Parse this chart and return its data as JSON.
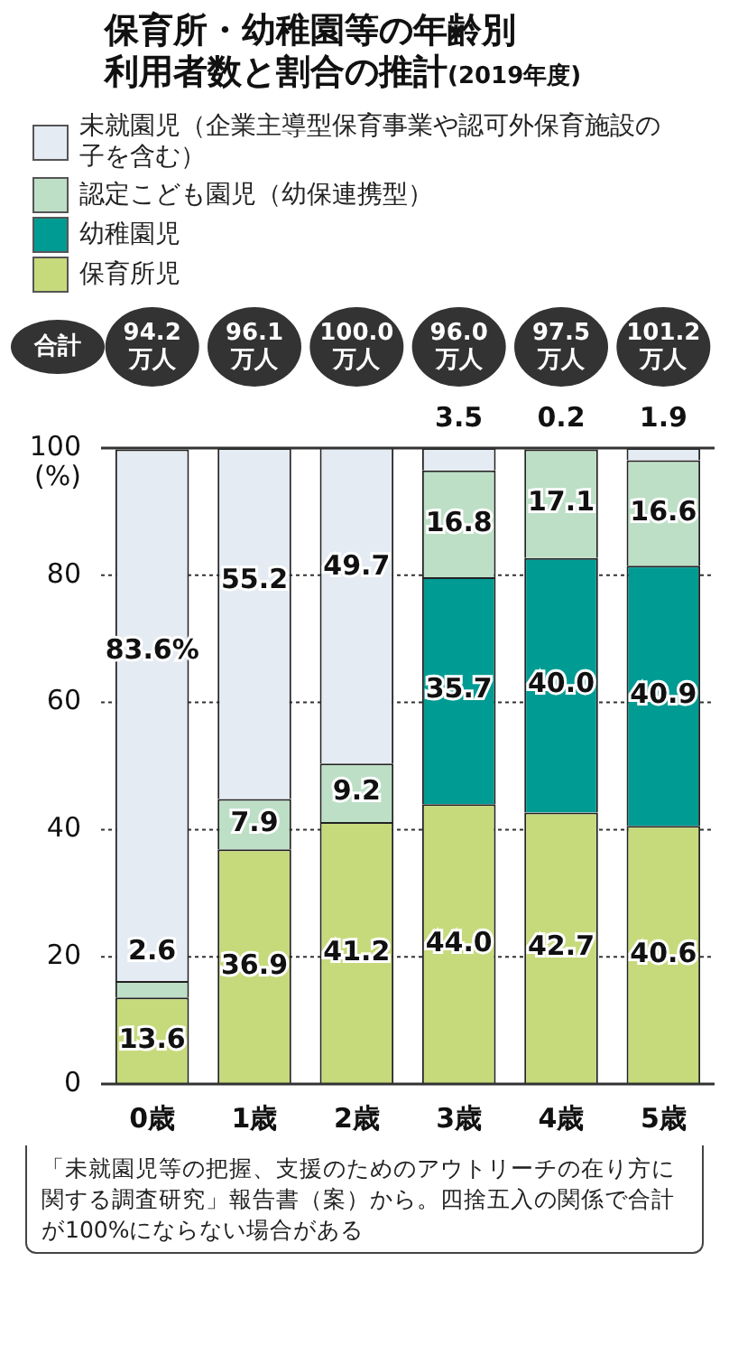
{
  "chart_data": {
    "type": "bar",
    "stacked": true,
    "title": "保育所・幼稚園等の年齢別利用者数と割合の推計",
    "subtitle": "(2019年度)",
    "ylabel": "(%)",
    "categories": [
      "0歳",
      "1歳",
      "2歳",
      "3歳",
      "4歳",
      "5歳"
    ],
    "series": [
      {
        "name": "保育所児",
        "color": "#c6da7c",
        "values": [
          13.6,
          36.9,
          41.2,
          44.0,
          42.7,
          40.6
        ],
        "value_labels": [
          "13.6",
          "36.9",
          "41.2",
          "44.0",
          "42.7",
          "40.6"
        ]
      },
      {
        "name": "幼稚園児",
        "color": "#009c94",
        "values": [
          null,
          null,
          null,
          35.7,
          40.0,
          40.9
        ],
        "value_labels": [
          null,
          null,
          null,
          "35.7",
          "40.0",
          "40.9"
        ]
      },
      {
        "name": "認定こども園児（幼保連携型）",
        "color": "#bddfc6",
        "values": [
          2.6,
          7.9,
          9.2,
          16.8,
          17.1,
          16.6
        ],
        "value_labels": [
          "2.6",
          "7.9",
          "9.2",
          "16.8",
          "17.1",
          "16.6"
        ]
      },
      {
        "name": "未就園児（企業主導型保育事業や認可外保育施設の子を含む）",
        "color": "#e4ebf2",
        "values": [
          83.6,
          55.2,
          49.7,
          3.5,
          0.2,
          1.9
        ],
        "value_labels": [
          "83.6%",
          "55.2",
          "49.7",
          "3.5",
          "0.2",
          "1.9"
        ]
      }
    ],
    "ylim": [
      0,
      100
    ],
    "yticks": [
      0,
      20,
      40,
      60,
      80,
      100
    ],
    "grid": "y",
    "legend": "top left",
    "annotations": [
      "合計",
      "94.2万人",
      "96.1万人",
      "100.0万人",
      "96.0万人",
      "97.5万人",
      "101.2万人",
      "「未就園児等の把握、支援のためのアウトリーチの在り方に関する調査研究」報告書（案）から。四捨五入の関係で合計が100%にならない場合がある"
    ]
  }
}
